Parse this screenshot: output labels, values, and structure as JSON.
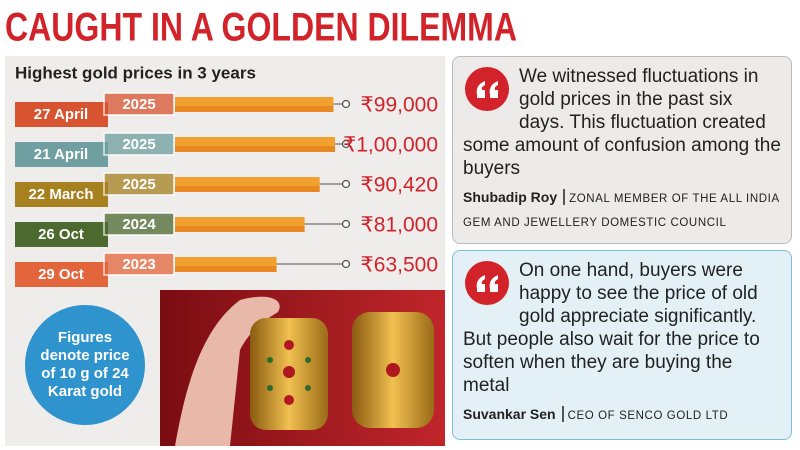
{
  "headline": "CAUGHT IN A GOLDEN DILEMMA",
  "chart_data": {
    "type": "bar",
    "title": "Highest gold prices in 3 years",
    "categories": [
      "27 April",
      "21 April",
      "22 March",
      "26 Oct",
      "29 Oct"
    ],
    "year_labels": [
      "2025",
      "2025",
      "2025",
      "2024",
      "2023"
    ],
    "values": [
      99000,
      100000,
      90420,
      81000,
      63500
    ],
    "value_labels": [
      "₹99,000",
      "₹1,00,000",
      "₹90,420",
      "₹81,000",
      "₹63,500"
    ],
    "category_colors": [
      "#d8532f",
      "#6f9fa0",
      "#a7801f",
      "#4c6a30",
      "#e2653c"
    ],
    "color": "#f2a02f"
  },
  "note": "Figures denote price of 10 g of 24 Karat gold",
  "quotes": [
    {
      "text": "We witnessed fluctuations in gold prices in the past six days. This fluctuation created some amount of confusion among the buyers",
      "name": "Shubadip Roy",
      "role": "ZONAL MEMBER OF THE ALL INDIA GEM AND JEWELLERY DOMESTIC COUNCIL"
    },
    {
      "text": "On one hand, buyers were happy to see the price of old gold appreciate significantly. But people also wait for the price to soften when they are buying the metal",
      "name": "Suvankar Sen",
      "role": "CEO OF SENCO GOLD LTD"
    }
  ]
}
